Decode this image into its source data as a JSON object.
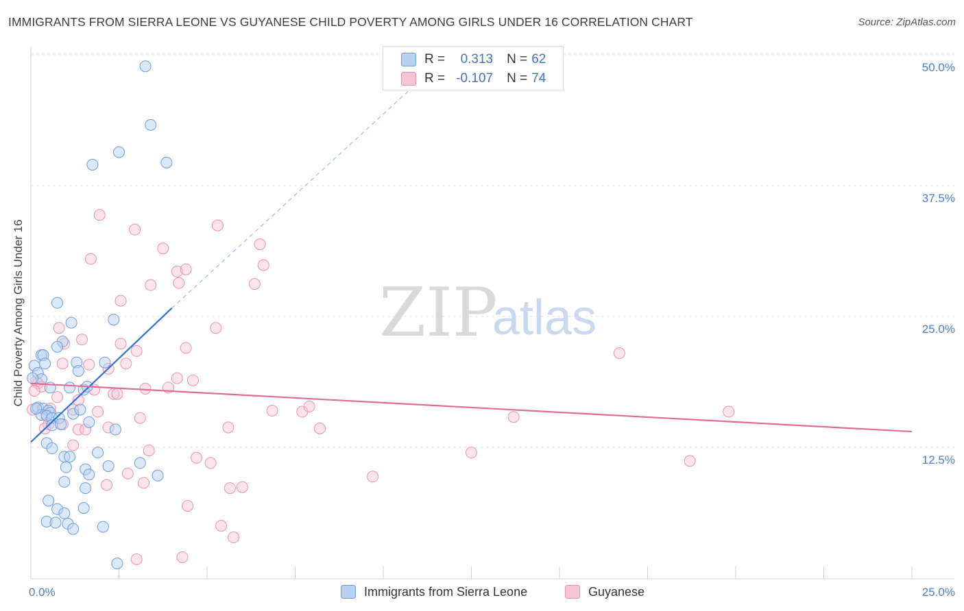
{
  "title": "IMMIGRANTS FROM SIERRA LEONE VS GUYANESE CHILD POVERTY AMONG GIRLS UNDER 16 CORRELATION CHART",
  "source": "Source: ZipAtlas.com",
  "watermark": {
    "zip": "ZIP",
    "atlas": "atlas"
  },
  "legend": {
    "r_label": "R =",
    "n_label": "N =",
    "series1": {
      "r": "0.313",
      "n": "62"
    },
    "series2": {
      "r": "-0.107",
      "n": "74"
    }
  },
  "colors": {
    "blue_fill": "#b8d1f1",
    "blue_stroke": "#6e9ad8",
    "blue_line": "#2f6fcf",
    "pink_fill": "#f7c4d5",
    "pink_stroke": "#ea8fae",
    "pink_line": "#e06c96",
    "tick_text": "#4a7cc9",
    "grid": "#e3e3e3"
  },
  "chart_data": {
    "type": "scatter",
    "title": "IMMIGRANTS FROM SIERRA LEONE VS GUYANESE CHILD POVERTY AMONG GIRLS UNDER 16 CORRELATION CHART",
    "xlabel": "",
    "ylabel": "Child Poverty Among Girls Under 16",
    "xlim": [
      0,
      25
    ],
    "ylim": [
      0,
      52
    ],
    "x_tick_labels": [
      {
        "value": 0,
        "label": "0.0%"
      },
      {
        "value": 25,
        "label": "25.0%"
      }
    ],
    "y_tick_labels": [
      {
        "value": 12.5,
        "label": "12.5%"
      },
      {
        "value": 25,
        "label": "25.0%"
      },
      {
        "value": 37.5,
        "label": "37.5%"
      },
      {
        "value": 50,
        "label": "50.0%"
      }
    ],
    "x_minor_ticks": [
      2.5,
      5,
      7.5,
      10,
      12.5,
      15,
      17.5,
      20,
      22.5,
      25
    ],
    "series": [
      {
        "name": "Immigrants from Sierra Leone",
        "color": "#6e9ad8",
        "r": 0.313,
        "n": 62,
        "trend": {
          "x0": 0,
          "y0": 13.0,
          "x1": 4.0,
          "y1": 25.8,
          "dash_to_x": 10.7,
          "dash_to_y": 46.5
        },
        "points": [
          [
            3.25,
            48.9
          ],
          [
            3.4,
            43.3
          ],
          [
            2.5,
            40.7
          ],
          [
            1.75,
            39.5
          ],
          [
            3.85,
            39.7
          ],
          [
            0.75,
            26.3
          ],
          [
            2.35,
            24.7
          ],
          [
            1.15,
            24.4
          ],
          [
            0.9,
            22.6
          ],
          [
            0.75,
            22.1
          ],
          [
            0.3,
            21.3
          ],
          [
            0.35,
            21.3
          ],
          [
            0.4,
            20.5
          ],
          [
            1.3,
            20.6
          ],
          [
            2.1,
            20.6
          ],
          [
            0.1,
            20.3
          ],
          [
            0.2,
            19.6
          ],
          [
            0.3,
            19.0
          ],
          [
            1.35,
            19.8
          ],
          [
            0.05,
            19.1
          ],
          [
            0.55,
            18.2
          ],
          [
            1.1,
            18.2
          ],
          [
            1.5,
            18.0
          ],
          [
            1.6,
            18.3
          ],
          [
            0.2,
            16.3
          ],
          [
            0.35,
            16.2
          ],
          [
            0.5,
            16.0
          ],
          [
            0.55,
            15.8
          ],
          [
            0.3,
            15.6
          ],
          [
            0.45,
            15.5
          ],
          [
            0.6,
            15.3
          ],
          [
            0.8,
            15.3
          ],
          [
            1.2,
            15.7
          ],
          [
            1.4,
            16.1
          ],
          [
            0.6,
            14.6
          ],
          [
            0.85,
            14.7
          ],
          [
            1.65,
            14.9
          ],
          [
            2.4,
            14.2
          ],
          [
            0.45,
            12.9
          ],
          [
            0.6,
            12.4
          ],
          [
            1.9,
            12.0
          ],
          [
            0.95,
            11.6
          ],
          [
            1.1,
            11.6
          ],
          [
            3.1,
            11.0
          ],
          [
            2.2,
            10.7
          ],
          [
            1.0,
            10.6
          ],
          [
            1.55,
            10.4
          ],
          [
            1.65,
            9.9
          ],
          [
            3.6,
            9.8
          ],
          [
            0.95,
            9.2
          ],
          [
            1.55,
            8.6
          ],
          [
            0.5,
            7.4
          ],
          [
            0.75,
            6.6
          ],
          [
            1.5,
            6.7
          ],
          [
            0.95,
            6.2
          ],
          [
            0.45,
            5.4
          ],
          [
            0.7,
            5.3
          ],
          [
            1.05,
            5.2
          ],
          [
            1.2,
            4.7
          ],
          [
            2.05,
            4.9
          ],
          [
            2.45,
            1.4
          ],
          [
            0.15,
            16.2
          ]
        ]
      },
      {
        "name": "Guyanese",
        "color": "#ea8fae",
        "r": -0.107,
        "n": 74,
        "trend": {
          "x0": 0,
          "y0": 18.6,
          "x1": 25,
          "y1": 14.0
        },
        "points": [
          [
            1.95,
            34.7
          ],
          [
            2.95,
            33.3
          ],
          [
            5.3,
            33.7
          ],
          [
            3.75,
            31.5
          ],
          [
            6.5,
            31.9
          ],
          [
            1.7,
            30.5
          ],
          [
            6.6,
            29.9
          ],
          [
            4.15,
            29.3
          ],
          [
            4.4,
            29.5
          ],
          [
            3.4,
            28.0
          ],
          [
            4.2,
            28.2
          ],
          [
            6.35,
            28.1
          ],
          [
            2.55,
            26.5
          ],
          [
            0.8,
            23.9
          ],
          [
            5.25,
            23.9
          ],
          [
            1.45,
            22.8
          ],
          [
            0.95,
            22.4
          ],
          [
            2.55,
            22.4
          ],
          [
            4.4,
            22.0
          ],
          [
            3.0,
            21.7
          ],
          [
            16.7,
            21.5
          ],
          [
            0.9,
            20.5
          ],
          [
            1.65,
            20.4
          ],
          [
            2.7,
            20.5
          ],
          [
            2.2,
            20.0
          ],
          [
            4.15,
            19.1
          ],
          [
            4.6,
            18.9
          ],
          [
            0.15,
            18.8
          ],
          [
            0.2,
            18.6
          ],
          [
            0.3,
            18.3
          ],
          [
            3.25,
            18.1
          ],
          [
            3.9,
            18.2
          ],
          [
            0.1,
            17.9
          ],
          [
            0.75,
            17.3
          ],
          [
            1.8,
            18.0
          ],
          [
            1.35,
            17.0
          ],
          [
            2.35,
            17.6
          ],
          [
            2.45,
            17.6
          ],
          [
            0.55,
            16.2
          ],
          [
            1.2,
            16.1
          ],
          [
            1.9,
            15.9
          ],
          [
            6.85,
            16.0
          ],
          [
            7.7,
            15.9
          ],
          [
            7.9,
            16.4
          ],
          [
            19.8,
            15.9
          ],
          [
            0.45,
            15.6
          ],
          [
            0.5,
            14.7
          ],
          [
            0.9,
            14.7
          ],
          [
            3.1,
            15.3
          ],
          [
            13.7,
            15.4
          ],
          [
            0.4,
            14.3
          ],
          [
            1.35,
            14.2
          ],
          [
            1.55,
            14.2
          ],
          [
            2.2,
            14.4
          ],
          [
            5.6,
            14.4
          ],
          [
            8.2,
            14.3
          ],
          [
            1.2,
            12.7
          ],
          [
            3.35,
            12.2
          ],
          [
            12.5,
            12.0
          ],
          [
            4.7,
            11.5
          ],
          [
            5.1,
            11.0
          ],
          [
            18.7,
            11.2
          ],
          [
            2.75,
            10.0
          ],
          [
            9.7,
            9.7
          ],
          [
            3.2,
            9.1
          ],
          [
            2.15,
            8.9
          ],
          [
            5.65,
            8.6
          ],
          [
            6.0,
            8.7
          ],
          [
            4.45,
            6.9
          ],
          [
            5.4,
            5.0
          ],
          [
            5.75,
            3.9
          ],
          [
            3.0,
            1.8
          ],
          [
            4.3,
            2.0
          ],
          [
            0.05,
            16.1
          ]
        ]
      }
    ]
  }
}
